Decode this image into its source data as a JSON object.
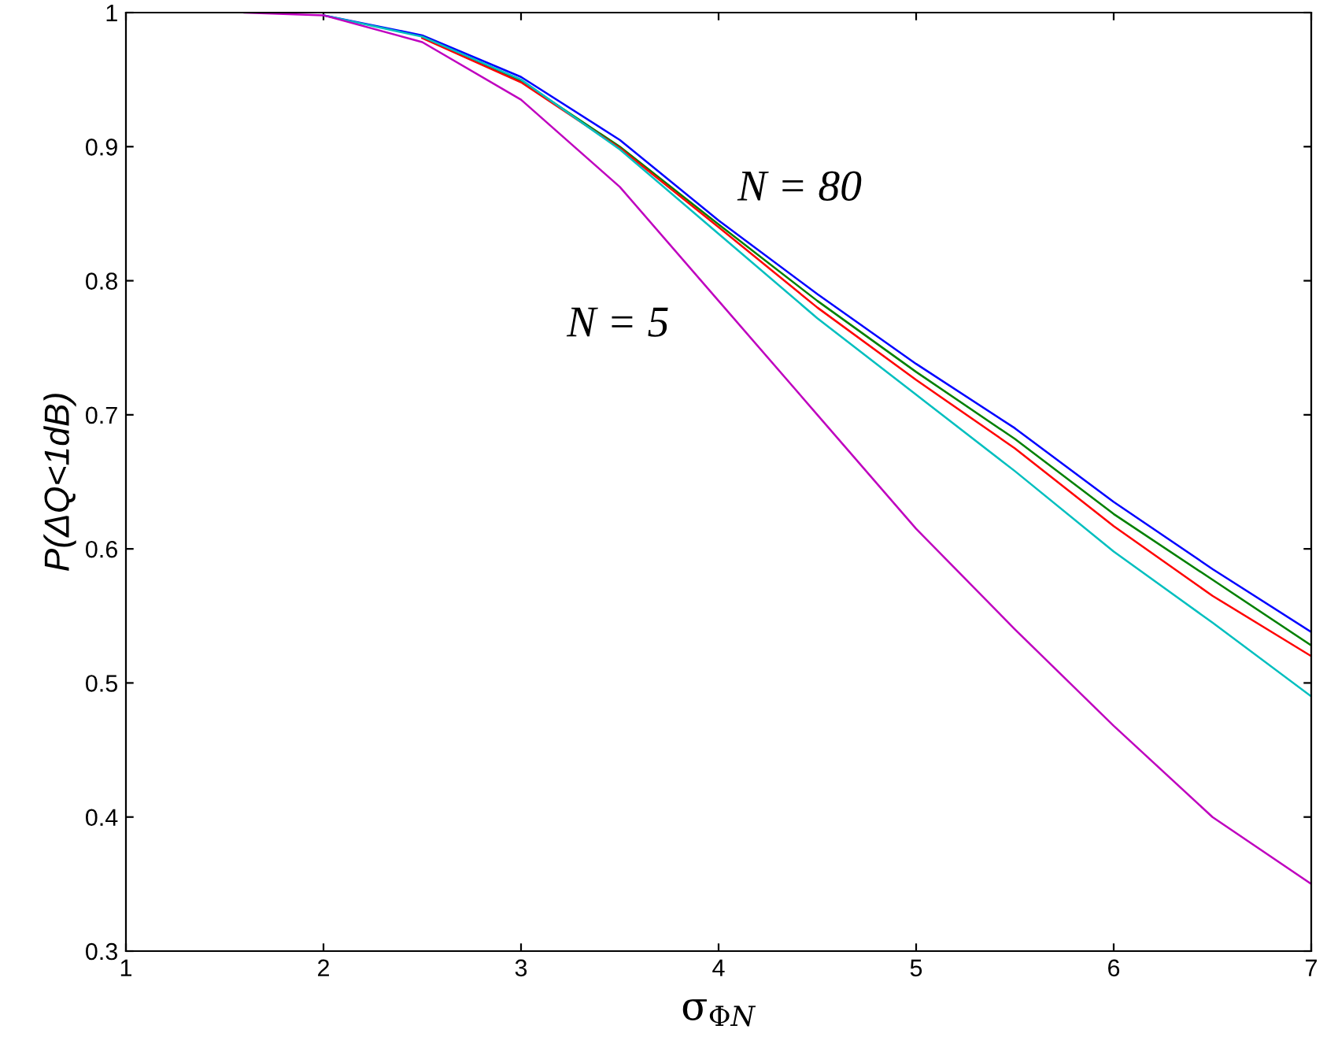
{
  "chart_data": {
    "type": "line",
    "xlabel": "σ$_{ΦN}$",
    "ylabel": "P(ΔQ<1dB)",
    "x": [
      1.6,
      2,
      2.5,
      3,
      3.5,
      4,
      4.5,
      5,
      5.5,
      6,
      6.5,
      7
    ],
    "series": [
      {
        "color": "#0000ff",
        "values": [
          null,
          0.998,
          0.983,
          0.952,
          0.905,
          0.845,
          0.79,
          0.738,
          0.69,
          0.635,
          0.585,
          0.538
        ]
      },
      {
        "color": "#008000",
        "values": [
          null,
          null,
          0.982,
          0.949,
          0.9,
          0.842,
          0.785,
          0.732,
          0.682,
          0.626,
          0.577,
          0.528
        ]
      },
      {
        "color": "#ff0000",
        "values": [
          null,
          null,
          0.981,
          0.948,
          0.899,
          0.84,
          0.78,
          0.726,
          0.675,
          0.617,
          0.565,
          0.52
        ]
      },
      {
        "color": "#00bfbf",
        "values": [
          null,
          0.998,
          0.982,
          0.95,
          0.898,
          0.835,
          0.772,
          0.715,
          0.658,
          0.598,
          0.545,
          0.49
        ]
      },
      {
        "color": "#bf00bf",
        "values": [
          1,
          0.998,
          0.978,
          0.935,
          0.87,
          0.785,
          0.7,
          0.615,
          0.54,
          0.468,
          0.4,
          0.35
        ]
      }
    ],
    "annotations": [
      "N = 80",
      "N = 5"
    ],
    "xlim": [
      1,
      7
    ],
    "ylim": [
      0.3,
      1
    ],
    "xticks": [
      1,
      2,
      3,
      4,
      5,
      6,
      7
    ],
    "yticks": [
      0.3,
      0.4,
      0.5,
      0.6,
      0.7,
      0.8,
      0.9,
      1
    ],
    "marker": "none",
    "line_style": "solid"
  }
}
